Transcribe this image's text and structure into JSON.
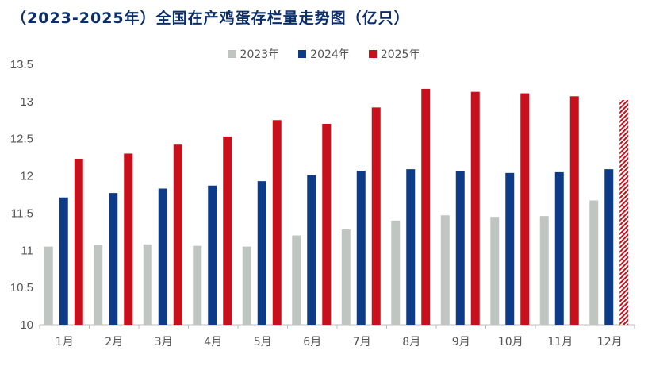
{
  "chart_data": {
    "type": "bar",
    "title": "（2023-2025年）全国在产鸡蛋存栏量走势图（亿只）",
    "categories": [
      "1月",
      "2月",
      "3月",
      "4月",
      "5月",
      "6月",
      "7月",
      "8月",
      "9月",
      "10月",
      "11月",
      "12月"
    ],
    "series": [
      {
        "name": "2023年",
        "color": "#bfc5c0",
        "values": [
          11.05,
          11.07,
          11.08,
          11.06,
          11.05,
          11.2,
          11.28,
          11.4,
          11.47,
          11.45,
          11.46,
          11.67
        ]
      },
      {
        "name": "2024年",
        "color": "#0d3b87",
        "values": [
          11.71,
          11.77,
          11.83,
          11.87,
          11.93,
          12.01,
          12.07,
          12.09,
          12.06,
          12.04,
          12.05,
          12.09
        ]
      },
      {
        "name": "2025年",
        "color": "#c8101c",
        "values": [
          12.23,
          12.3,
          12.42,
          12.53,
          12.75,
          12.7,
          12.92,
          13.17,
          13.13,
          13.11,
          13.07,
          13.02
        ]
      }
    ],
    "forecast_index": 11,
    "yticks": [
      "10",
      "10.5",
      "11",
      "11.5",
      "12",
      "12.5",
      "13",
      "13.5"
    ],
    "ylim": [
      10,
      13.5
    ],
    "grid": false,
    "legend_position": "top-center"
  }
}
